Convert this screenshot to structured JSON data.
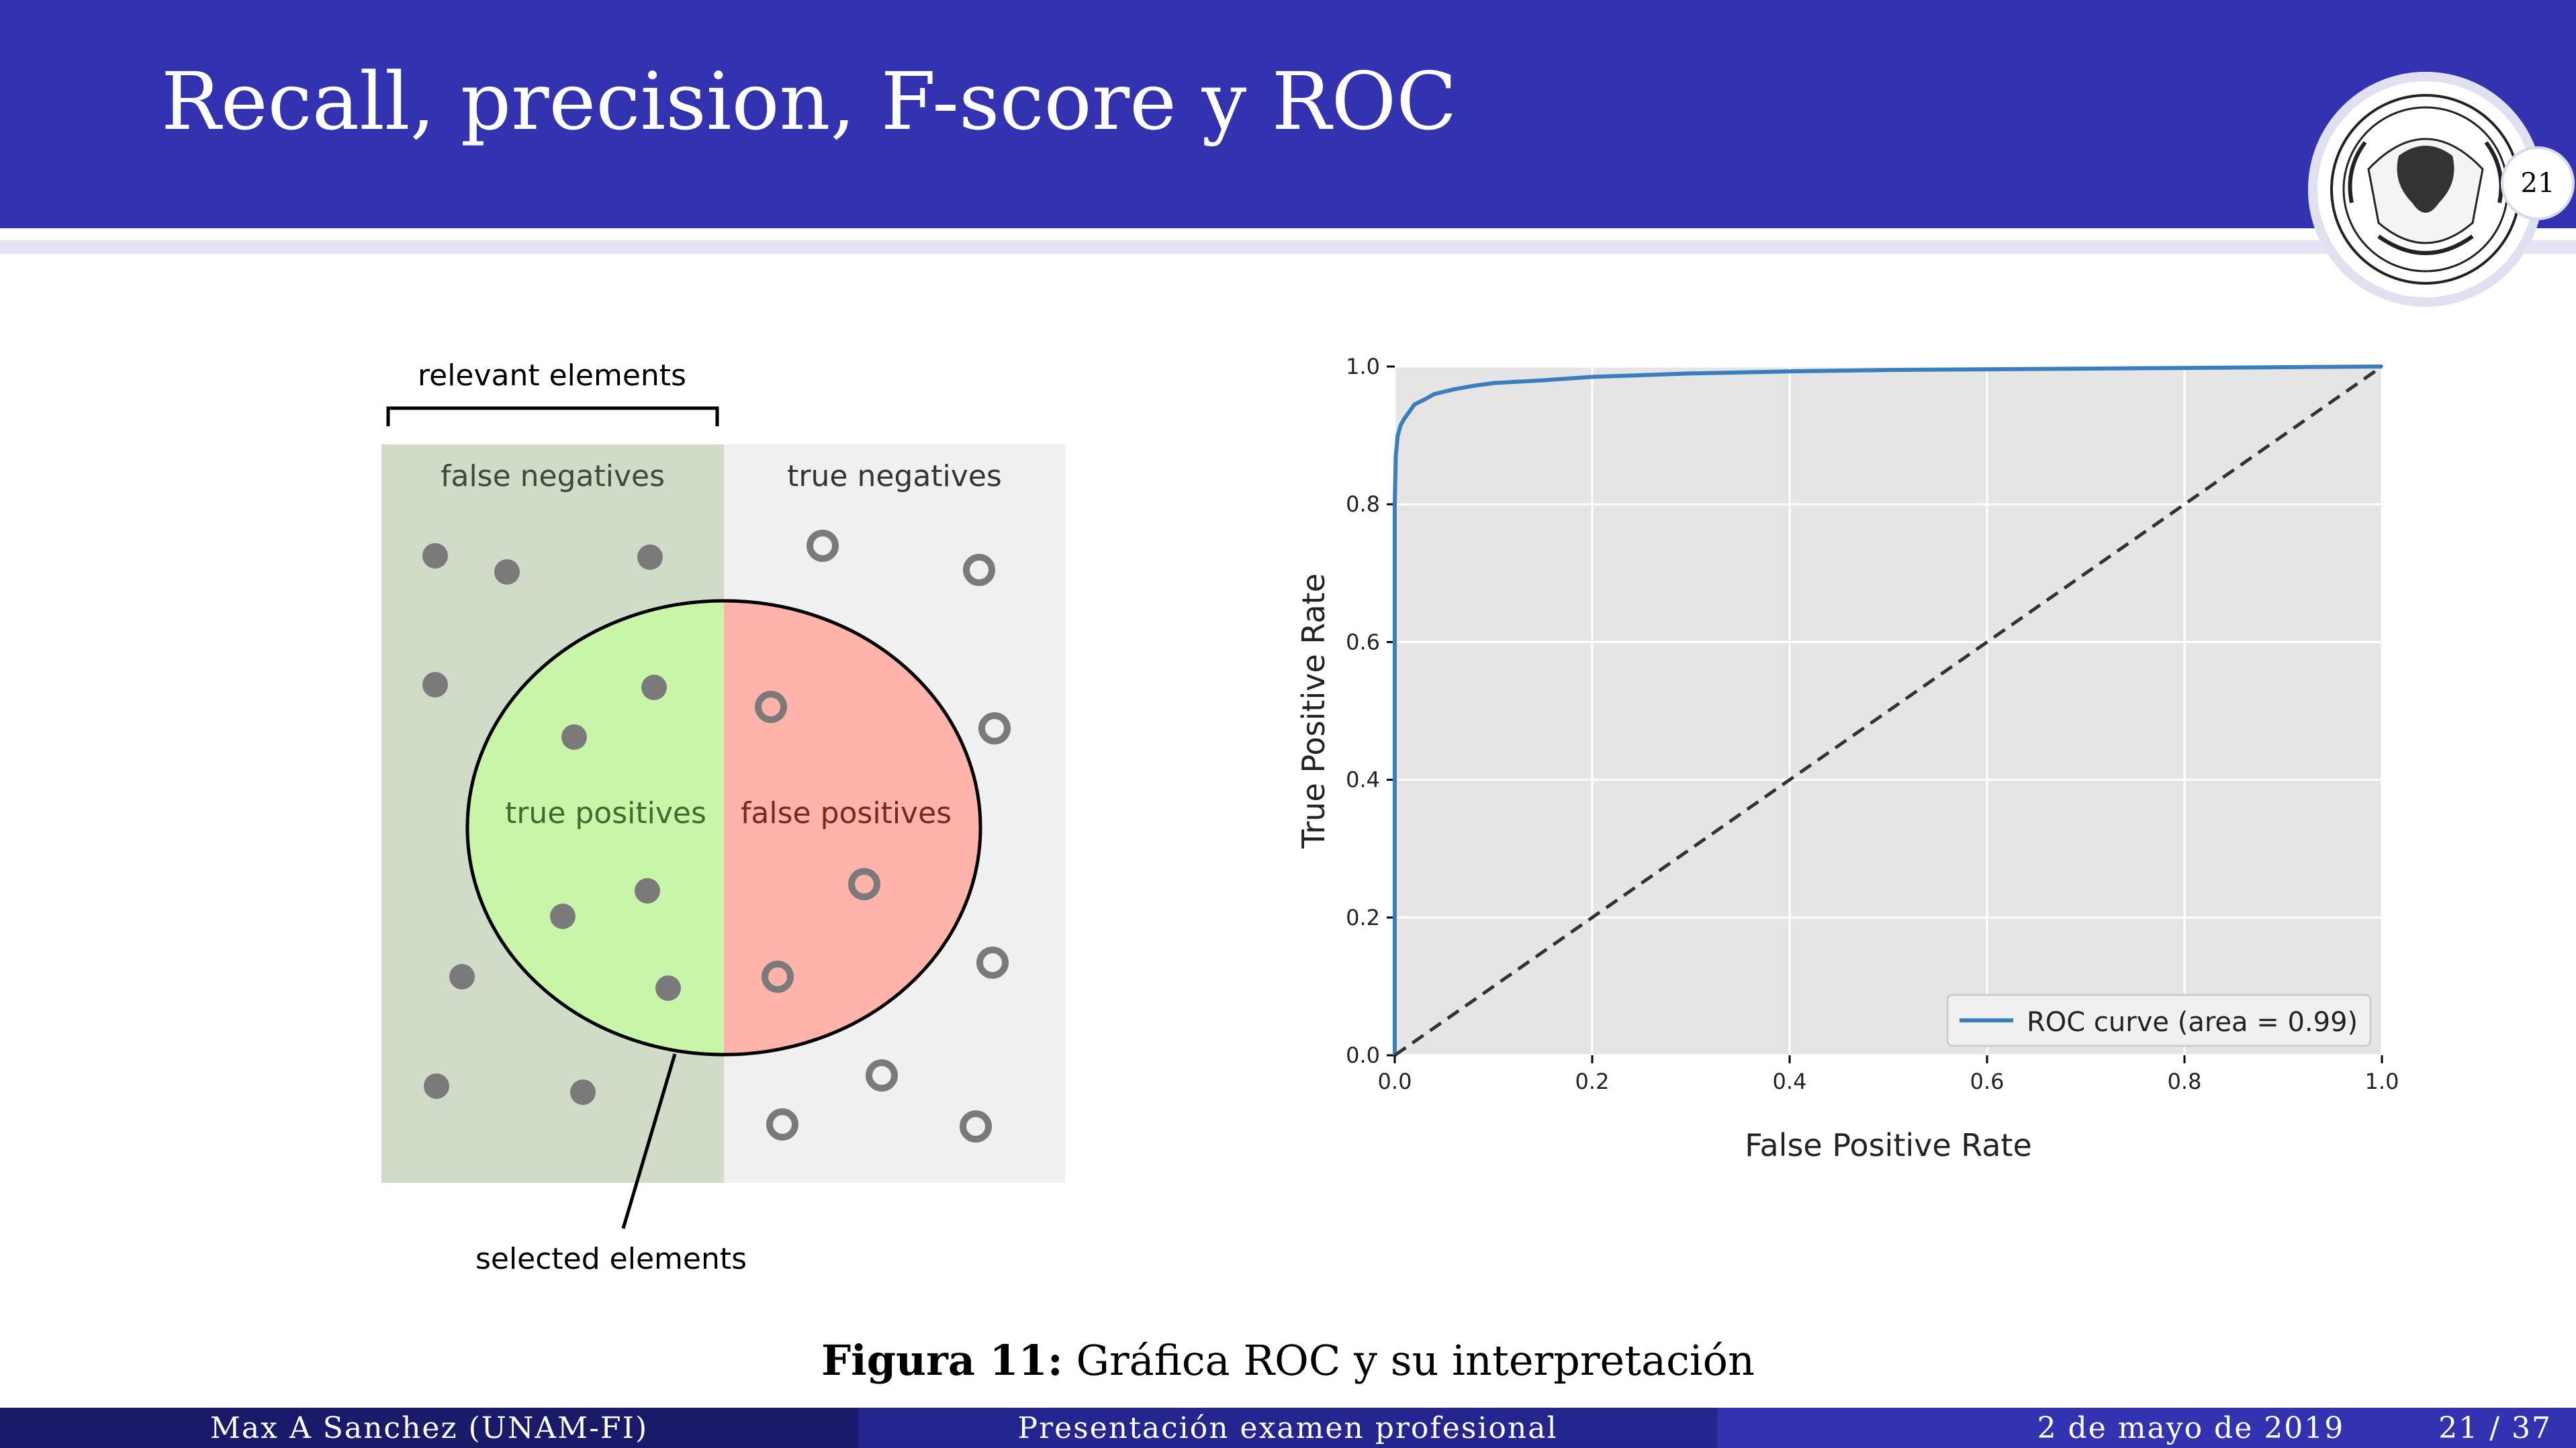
{
  "slide": {
    "title": "Recall, precision, F-score y ROC",
    "page_number": "21"
  },
  "diagram": {
    "relevant_label": "relevant elements",
    "false_negatives": "false negatives",
    "true_negatives": "true negatives",
    "true_positives": "true positives",
    "false_positives": "false positives",
    "selected_label": "selected elements"
  },
  "chart_data": {
    "type": "line",
    "xlabel": "False Positive Rate",
    "ylabel": "True Positive Rate",
    "xlim": [
      0.0,
      1.0
    ],
    "ylim": [
      0.0,
      1.0
    ],
    "xticks": [
      "0.0",
      "0.2",
      "0.4",
      "0.6",
      "0.8",
      "1.0"
    ],
    "yticks": [
      "0.0",
      "0.2",
      "0.4",
      "0.6",
      "0.8",
      "1.0"
    ],
    "grid": true,
    "legend_position": "lower-right",
    "series": [
      {
        "name": "ROC curve (area = 0.99)",
        "color": "#3a7fbd",
        "style": "solid",
        "x": [
          0.0,
          0.0,
          0.001,
          0.003,
          0.006,
          0.01,
          0.015,
          0.02,
          0.03,
          0.04,
          0.06,
          0.08,
          0.1,
          0.15,
          0.2,
          0.3,
          0.4,
          0.5,
          0.6,
          0.7,
          0.8,
          0.9,
          1.0
        ],
        "y": [
          0.0,
          0.8,
          0.87,
          0.9,
          0.915,
          0.925,
          0.935,
          0.945,
          0.952,
          0.96,
          0.967,
          0.972,
          0.976,
          0.98,
          0.985,
          0.99,
          0.993,
          0.995,
          0.996,
          0.997,
          0.998,
          0.999,
          1.0
        ]
      },
      {
        "name": "",
        "color": "#333333",
        "style": "dashed",
        "x": [
          0.0,
          1.0
        ],
        "y": [
          0.0,
          1.0
        ]
      }
    ]
  },
  "caption": {
    "label": "Figura 11:",
    "text": "Gráfica ROC y su interpretación"
  },
  "footer": {
    "author": "Max A Sanchez (UNAM-FI)",
    "talk": "Presentación examen profesional",
    "date": "2 de mayo de 2019",
    "pages": "21 / 37"
  },
  "colors": {
    "header": "#3333b2",
    "false_negative_bg": "#d0dbc8",
    "true_negative_bg": "#f0f0f0",
    "true_positive_fill": "#c8f5a8",
    "false_positive_fill": "#ffb3ab",
    "plot_bg": "#e5e5e5"
  }
}
